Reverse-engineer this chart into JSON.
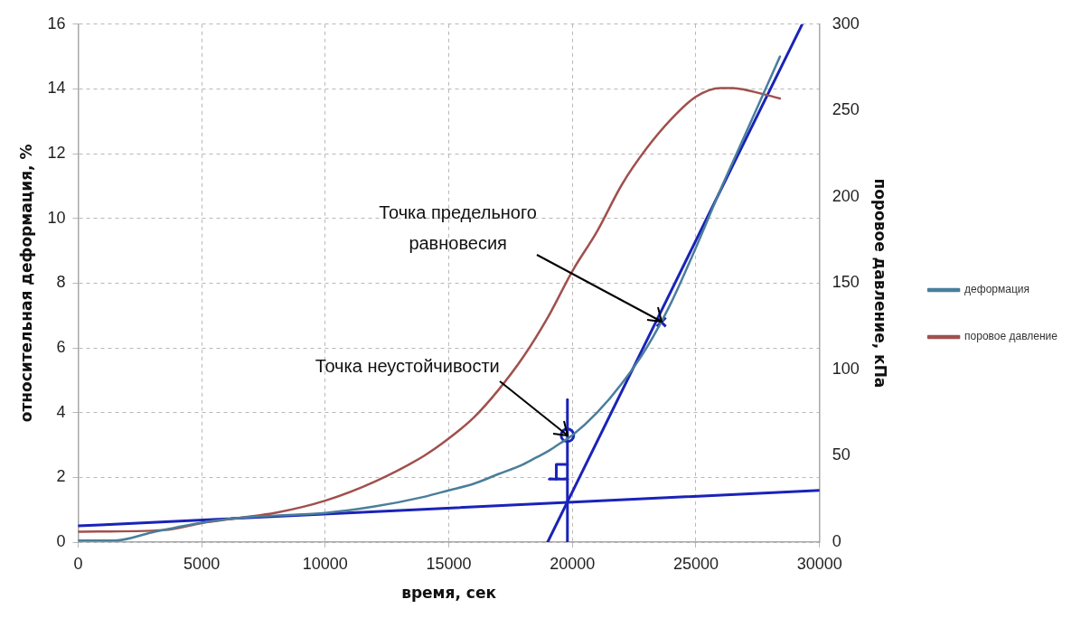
{
  "chart_data": {
    "type": "line",
    "xlabel": "время, сек",
    "ylabel": "относительная деформация, %",
    "y2label": "поровое давление, кПа",
    "xlim": [
      0,
      30000
    ],
    "xticks": [
      0,
      5000,
      10000,
      15000,
      20000,
      25000,
      30000
    ],
    "ylim": [
      0,
      16
    ],
    "yticks": [
      0,
      2,
      4,
      6,
      8,
      10,
      12,
      14,
      16
    ],
    "y2lim": [
      0,
      300
    ],
    "y2ticks": [
      0,
      50,
      100,
      150,
      200,
      250,
      300
    ],
    "grid": true,
    "legend": "right",
    "marker": "none",
    "line_style": "solid",
    "series": [
      {
        "name": "деформация",
        "color": "#4a7e9b",
        "x": [
          0,
          1500,
          3000,
          5000,
          6500,
          8000,
          10000,
          12000,
          14000,
          15000,
          16000,
          17000,
          18000,
          18500,
          19000,
          19500,
          20000,
          21000,
          22000,
          23000,
          24000,
          25000,
          26000,
          27000,
          28400
        ],
        "values": [
          0.05,
          0.05,
          0.3,
          0.6,
          0.75,
          0.82,
          0.9,
          1.1,
          1.4,
          1.6,
          1.8,
          2.1,
          2.4,
          2.6,
          2.8,
          3.05,
          3.3,
          4.0,
          4.9,
          6.0,
          7.4,
          9.1,
          10.9,
          12.6,
          15.0
        ]
      },
      {
        "name": "поровое давление",
        "color": "#a0504d",
        "axis": "y2",
        "x": [
          0,
          3500,
          5000,
          6500,
          8000,
          10000,
          12000,
          14000,
          15000,
          16000,
          17000,
          18000,
          19000,
          20000,
          21000,
          22000,
          23000,
          24000,
          25000,
          26000,
          26500,
          27000,
          28400
        ],
        "values": [
          6,
          7,
          11,
          14,
          17,
          24,
          35,
          50,
          60,
          72,
          88,
          107,
          130,
          157,
          180,
          207,
          228,
          245,
          258,
          263,
          263,
          262,
          257
        ]
      },
      {
        "color": "#1a23b8",
        "x": [
          0,
          30000
        ],
        "values": [
          0.5,
          1.6
        ]
      },
      {
        "color": "#1a23b8",
        "x": [
          19000,
          29300
        ],
        "values": [
          0,
          16
        ]
      },
      {
        "color": "#1a23b8",
        "x": [
          19800,
          19800
        ],
        "values": [
          0,
          4.4
        ]
      },
      {
        "color": "#1a23b8",
        "x": [
          19070,
          19800
        ],
        "values": [
          1.95,
          1.95
        ]
      },
      {
        "color": "#1a23b8",
        "x": [
          19350,
          19350,
          19800
        ],
        "values": [
          1.95,
          2.4,
          2.4
        ]
      },
      {
        "type": "scatter",
        "color": "#1a23b8",
        "marker": "circle",
        "x": [
          19800
        ],
        "values": [
          3.3
        ]
      },
      {
        "type": "scatter",
        "color": "#1a23b8",
        "marker": "cross",
        "x": [
          23600
        ],
        "values": [
          6.8
        ]
      }
    ],
    "annotations": [
      {
        "text": "Точка неустойчивости",
        "x": 19800,
        "y": 3.3
      },
      {
        "text": "Точка предельного равновесия",
        "x": 23600,
        "y": 6.8
      }
    ]
  }
}
